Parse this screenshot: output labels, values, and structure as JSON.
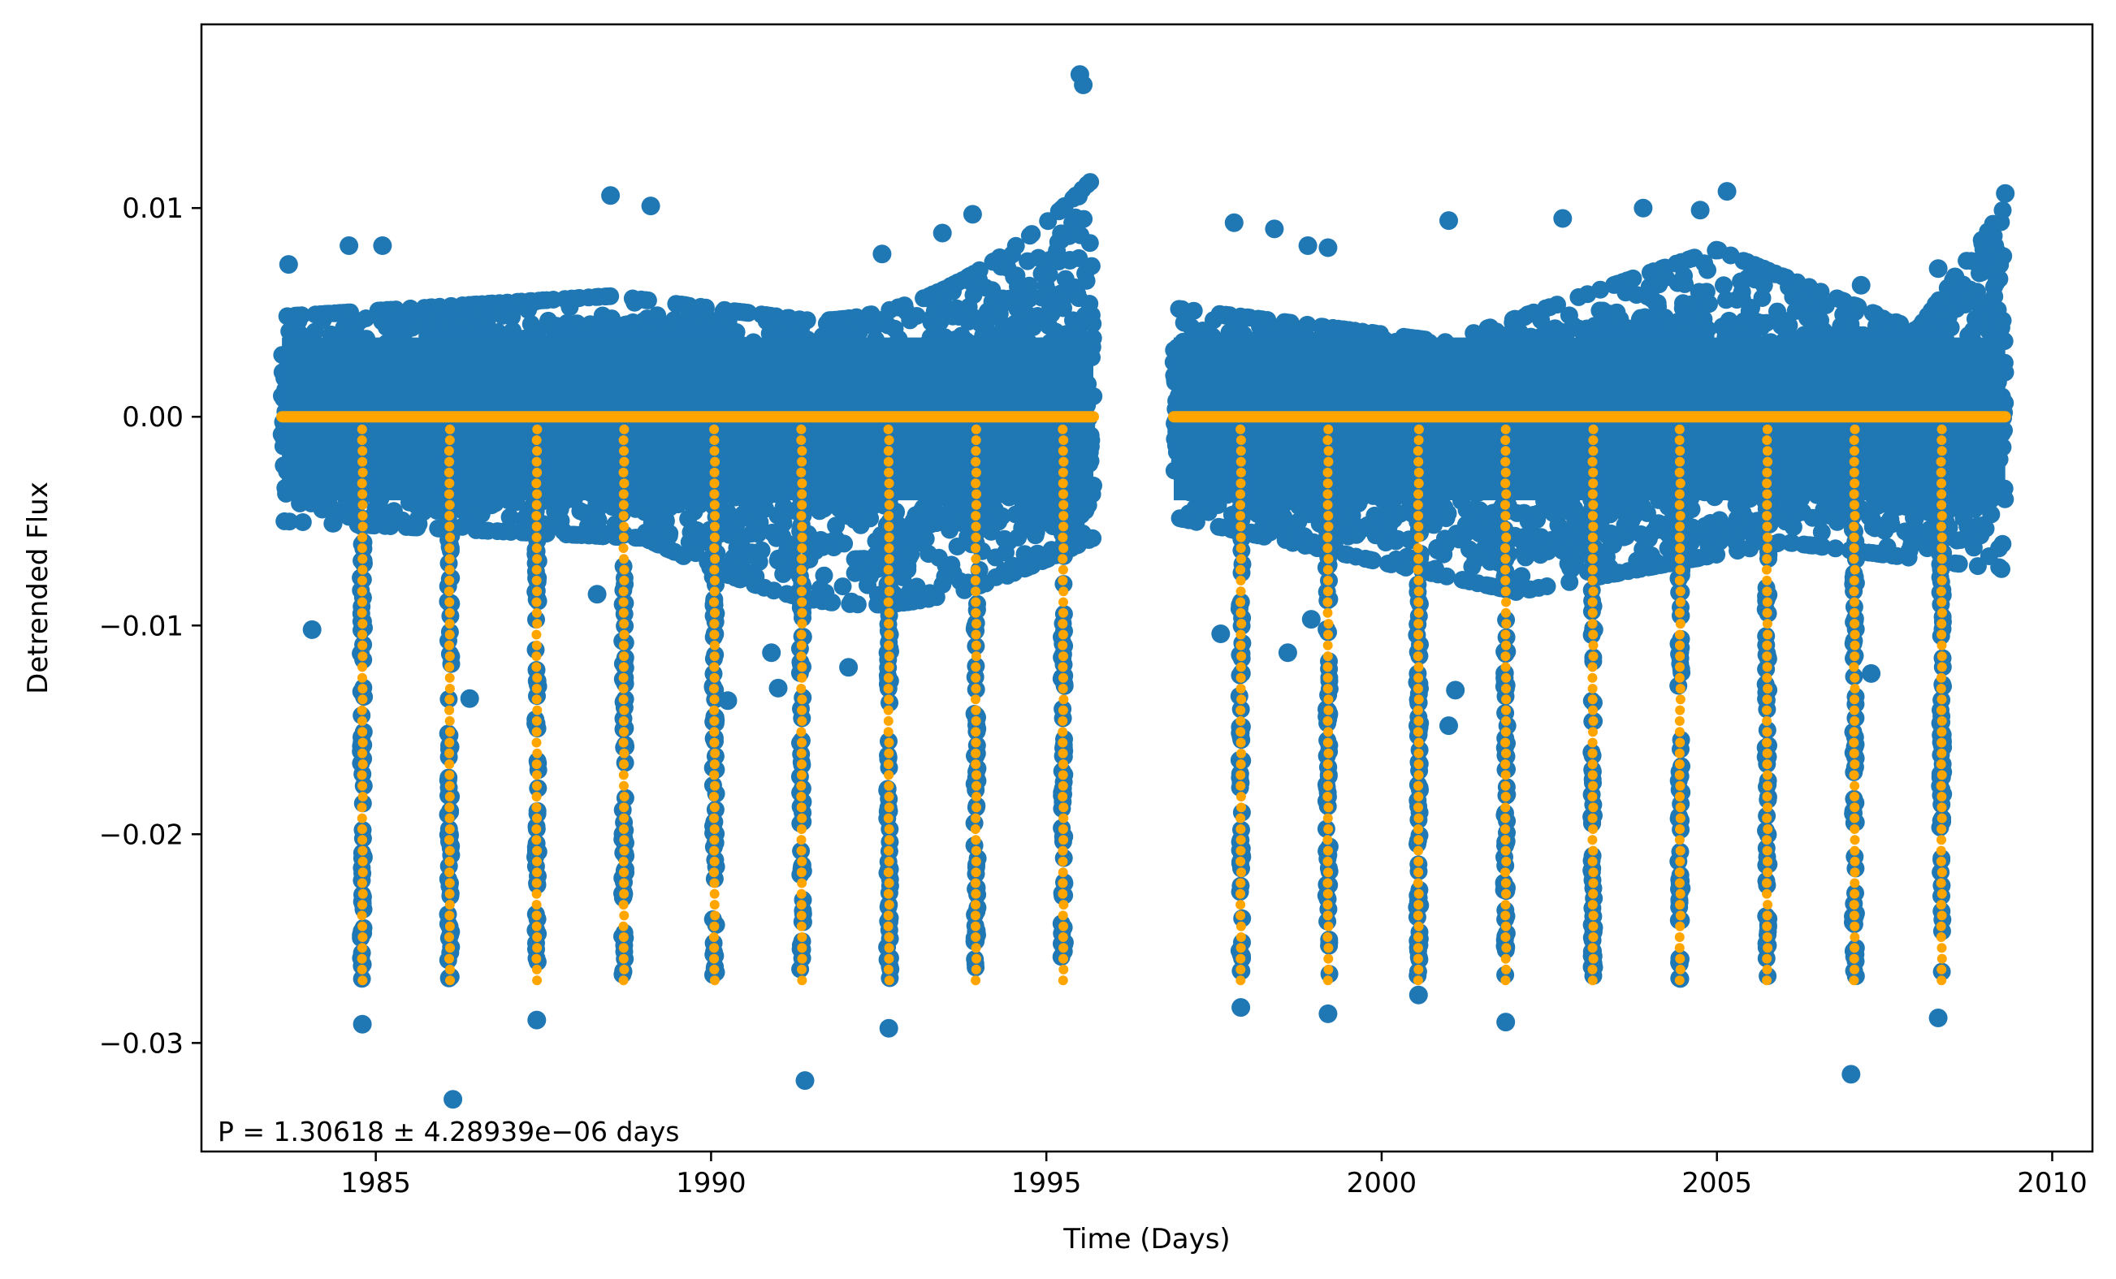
{
  "chart_data": {
    "type": "scatter",
    "title": "",
    "xlabel": "Time (Days)",
    "ylabel": "Detrended Flux",
    "xlim": [
      1982.4,
      2010.6
    ],
    "ylim": [
      -0.0352,
      0.0188
    ],
    "x_ticks": [
      1985,
      1990,
      1995,
      2000,
      2005,
      2010
    ],
    "x_tick_labels": [
      "1985",
      "1990",
      "1995",
      "2000",
      "2005",
      "2010"
    ],
    "y_ticks": [
      0.01,
      0.0,
      -0.01,
      -0.02,
      -0.03
    ],
    "y_tick_labels": [
      "0.01",
      "0.00",
      "−0.01",
      "−0.02",
      "−0.03"
    ],
    "grid": false,
    "legend": "none",
    "annotation": "P = 1.30618 ± 4.28939e−06 days",
    "period_days": 1.30618,
    "period_err_days": 4.28939e-06,
    "transit_depth": -0.027,
    "segments": [
      [
        1983.6,
        1995.7
      ],
      [
        1996.9,
        2009.3
      ]
    ],
    "transit_times": [
      1984.8,
      1986.1,
      1987.4,
      1988.7,
      1990.05,
      1991.35,
      1992.65,
      1993.95,
      1995.25,
      1997.9,
      1999.2,
      2000.55,
      2001.85,
      2003.15,
      2004.45,
      2005.75,
      2007.05,
      2008.35
    ],
    "series": [
      {
        "name": "",
        "color": "#1f77b4",
        "description_kind": "observed flux (large markers)",
        "outliers": [
          [
            1984.05,
            -0.0102
          ],
          [
            1986.15,
            -0.0327
          ],
          [
            1986.4,
            -0.0135
          ],
          [
            1991.4,
            -0.0318
          ],
          [
            1984.8,
            -0.0291
          ],
          [
            1987.4,
            -0.0289
          ],
          [
            1992.65,
            -0.0293
          ],
          [
            1997.9,
            -0.0283
          ],
          [
            1999.2,
            -0.0286
          ],
          [
            2000.55,
            -0.0277
          ],
          [
            2001.85,
            -0.029
          ],
          [
            2007.0,
            -0.0315
          ],
          [
            2008.3,
            -0.0288
          ],
          [
            2001.0,
            -0.0148
          ],
          [
            2001.1,
            -0.0131
          ],
          [
            1997.6,
            -0.0104
          ],
          [
            1998.6,
            -0.0113
          ],
          [
            1998.95,
            -0.0097
          ],
          [
            2007.3,
            -0.0123
          ],
          [
            1992.05,
            -0.012
          ],
          [
            1990.9,
            -0.0113
          ],
          [
            1991.0,
            -0.013
          ],
          [
            1990.25,
            -0.0136
          ],
          [
            1988.3,
            -0.0085
          ],
          [
            1995.5,
            0.0164
          ],
          [
            1995.55,
            0.0159
          ],
          [
            1993.9,
            0.0097
          ],
          [
            1993.45,
            0.0088
          ],
          [
            1992.55,
            0.0078
          ],
          [
            2001.0,
            0.0094
          ],
          [
            2002.7,
            0.0095
          ],
          [
            2003.9,
            0.01
          ],
          [
            2004.75,
            0.0099
          ],
          [
            2005.15,
            0.0108
          ],
          [
            2009.3,
            0.0107
          ],
          [
            2007.15,
            0.0063
          ],
          [
            2008.3,
            0.0071
          ],
          [
            2008.55,
            0.0067
          ],
          [
            1988.5,
            0.0106
          ],
          [
            1989.1,
            0.0101
          ],
          [
            1984.6,
            0.0082
          ],
          [
            1985.1,
            0.0082
          ],
          [
            1983.7,
            0.0073
          ],
          [
            1997.8,
            0.0093
          ],
          [
            1998.4,
            0.009
          ],
          [
            1999.2,
            0.0081
          ],
          [
            1998.9,
            0.0082
          ],
          [
            1995.35,
            0.0075
          ]
        ]
      },
      {
        "name": "",
        "color": "#ffa500",
        "description_kind": "transit model (small markers)"
      }
    ]
  }
}
